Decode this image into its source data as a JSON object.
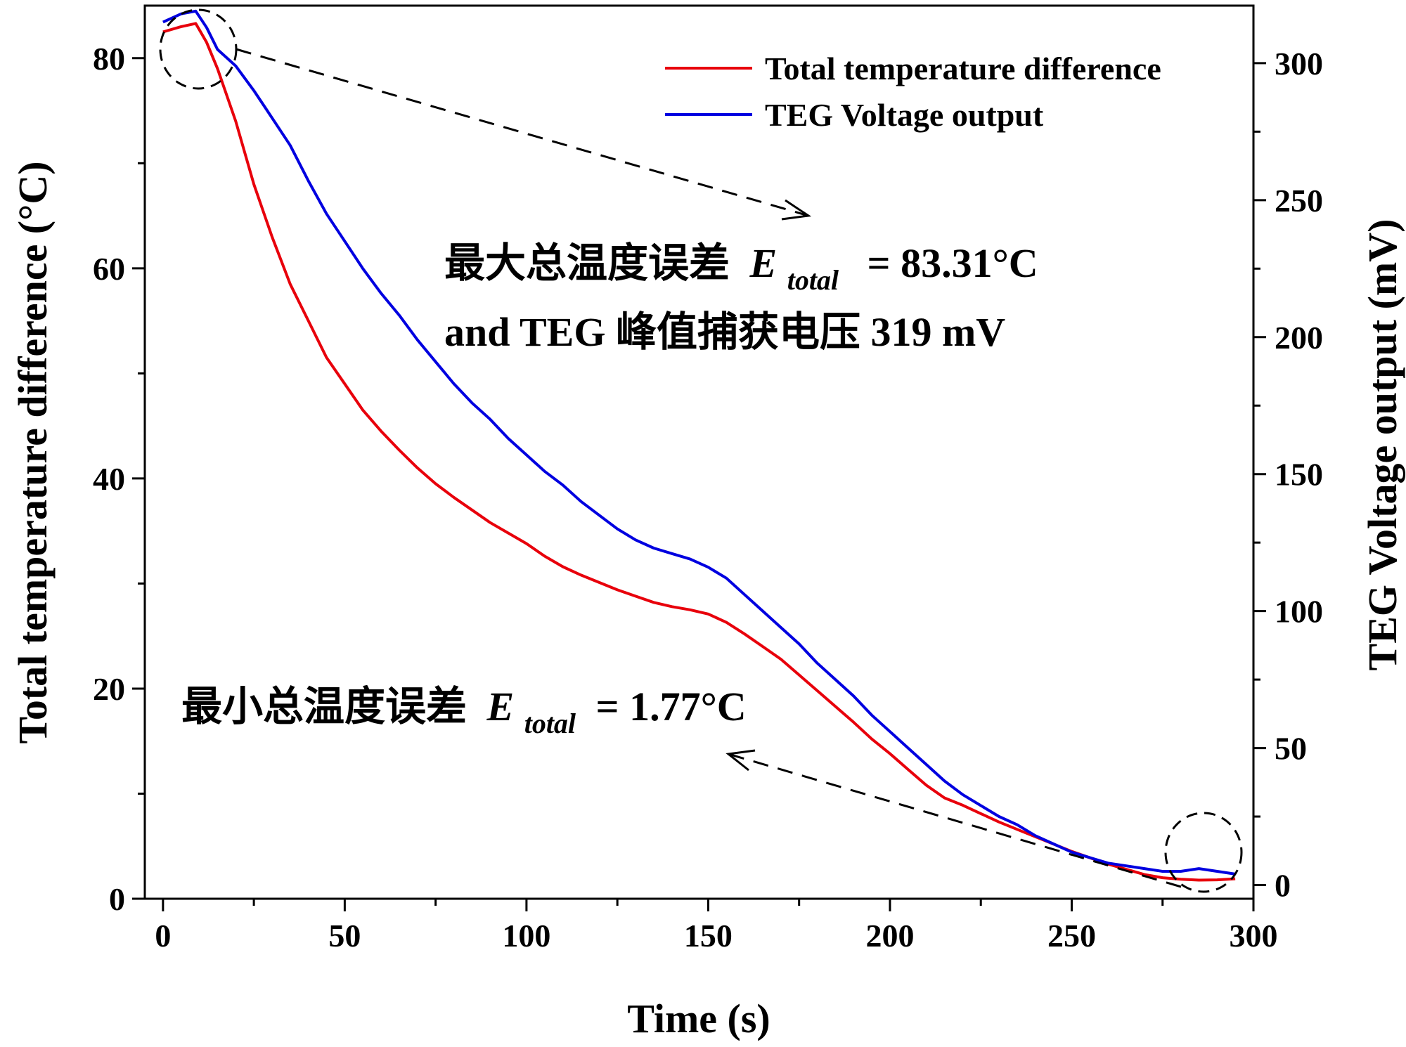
{
  "chart_data": {
    "type": "line",
    "title": "",
    "xlabel": "Time (s)",
    "ylabel": "Total temperature difference (°C)",
    "y2label": "TEG Voltage output (mV)",
    "xlim": [
      -5,
      300
    ],
    "ylim": [
      0,
      85
    ],
    "y2lim": [
      -5,
      321
    ],
    "xticks": [
      0,
      50,
      100,
      150,
      200,
      250,
      300
    ],
    "yticks": [
      0,
      20,
      40,
      60,
      80
    ],
    "y2ticks": [
      0,
      50,
      100,
      150,
      200,
      250,
      300
    ],
    "legend_position": "top-right",
    "series": [
      {
        "name": "Total temperature difference",
        "axis": "left",
        "color": "#e8000b",
        "x": [
          0,
          5,
          9,
          12,
          15,
          20,
          25,
          30,
          35,
          40,
          45,
          50,
          55,
          60,
          65,
          70,
          75,
          80,
          85,
          90,
          95,
          100,
          105,
          110,
          115,
          120,
          125,
          130,
          135,
          140,
          145,
          150,
          155,
          160,
          165,
          170,
          175,
          180,
          185,
          190,
          195,
          200,
          205,
          210,
          215,
          220,
          225,
          230,
          235,
          240,
          245,
          250,
          255,
          260,
          265,
          270,
          275,
          280,
          285,
          290,
          295
        ],
        "y": [
          82.5,
          83.0,
          83.3,
          81.5,
          79.0,
          74.0,
          68.0,
          63.0,
          58.5,
          55.0,
          51.5,
          49.0,
          46.5,
          44.5,
          42.7,
          41.0,
          39.5,
          38.2,
          37.0,
          35.8,
          34.8,
          33.8,
          32.6,
          31.6,
          30.8,
          30.1,
          29.4,
          28.8,
          28.2,
          27.8,
          27.5,
          27.1,
          26.3,
          25.2,
          24.0,
          22.8,
          21.3,
          19.8,
          18.3,
          16.8,
          15.2,
          13.8,
          12.3,
          10.8,
          9.6,
          8.9,
          8.1,
          7.3,
          6.6,
          5.9,
          5.2,
          4.5,
          3.9,
          3.3,
          2.8,
          2.3,
          2.0,
          1.85,
          1.77,
          1.8,
          1.9
        ]
      },
      {
        "name": "TEG Voltage output",
        "axis": "right",
        "color": "#0000e0",
        "x": [
          0,
          5,
          9,
          12,
          15,
          20,
          25,
          30,
          35,
          40,
          45,
          50,
          55,
          60,
          65,
          70,
          75,
          80,
          85,
          90,
          95,
          100,
          105,
          110,
          115,
          120,
          125,
          130,
          135,
          140,
          145,
          150,
          155,
          160,
          165,
          170,
          175,
          180,
          185,
          190,
          195,
          200,
          205,
          210,
          215,
          220,
          225,
          230,
          235,
          240,
          245,
          250,
          255,
          260,
          265,
          270,
          275,
          280,
          285,
          290,
          295
        ],
        "y": [
          315,
          318,
          319,
          313,
          305,
          299,
          290,
          280,
          270,
          257,
          245,
          235,
          225,
          216,
          208,
          199,
          191,
          183,
          176,
          170,
          163,
          157,
          151,
          146,
          140,
          135,
          130,
          126,
          123,
          121,
          119,
          116,
          112,
          106,
          100,
          94,
          88,
          81,
          75,
          69,
          62,
          56,
          50,
          44,
          38,
          33,
          29,
          25,
          22,
          18,
          15,
          12,
          10,
          8,
          7,
          6,
          5,
          5,
          6,
          5,
          4
        ]
      }
    ],
    "legend": [
      "Total temperature difference",
      "TEG Voltage output"
    ],
    "annotations": {
      "max": {
        "line1_prefix": "最大总温度误差",
        "symbol": "E",
        "subscript": "total",
        "line1_value": "= 83.31°C",
        "line2": "and TEG 峰值捕获电压 319 mV"
      },
      "min": {
        "prefix": "最小总温度误差",
        "symbol": "E",
        "subscript": "total",
        "value": "= 1.77°C"
      }
    }
  }
}
